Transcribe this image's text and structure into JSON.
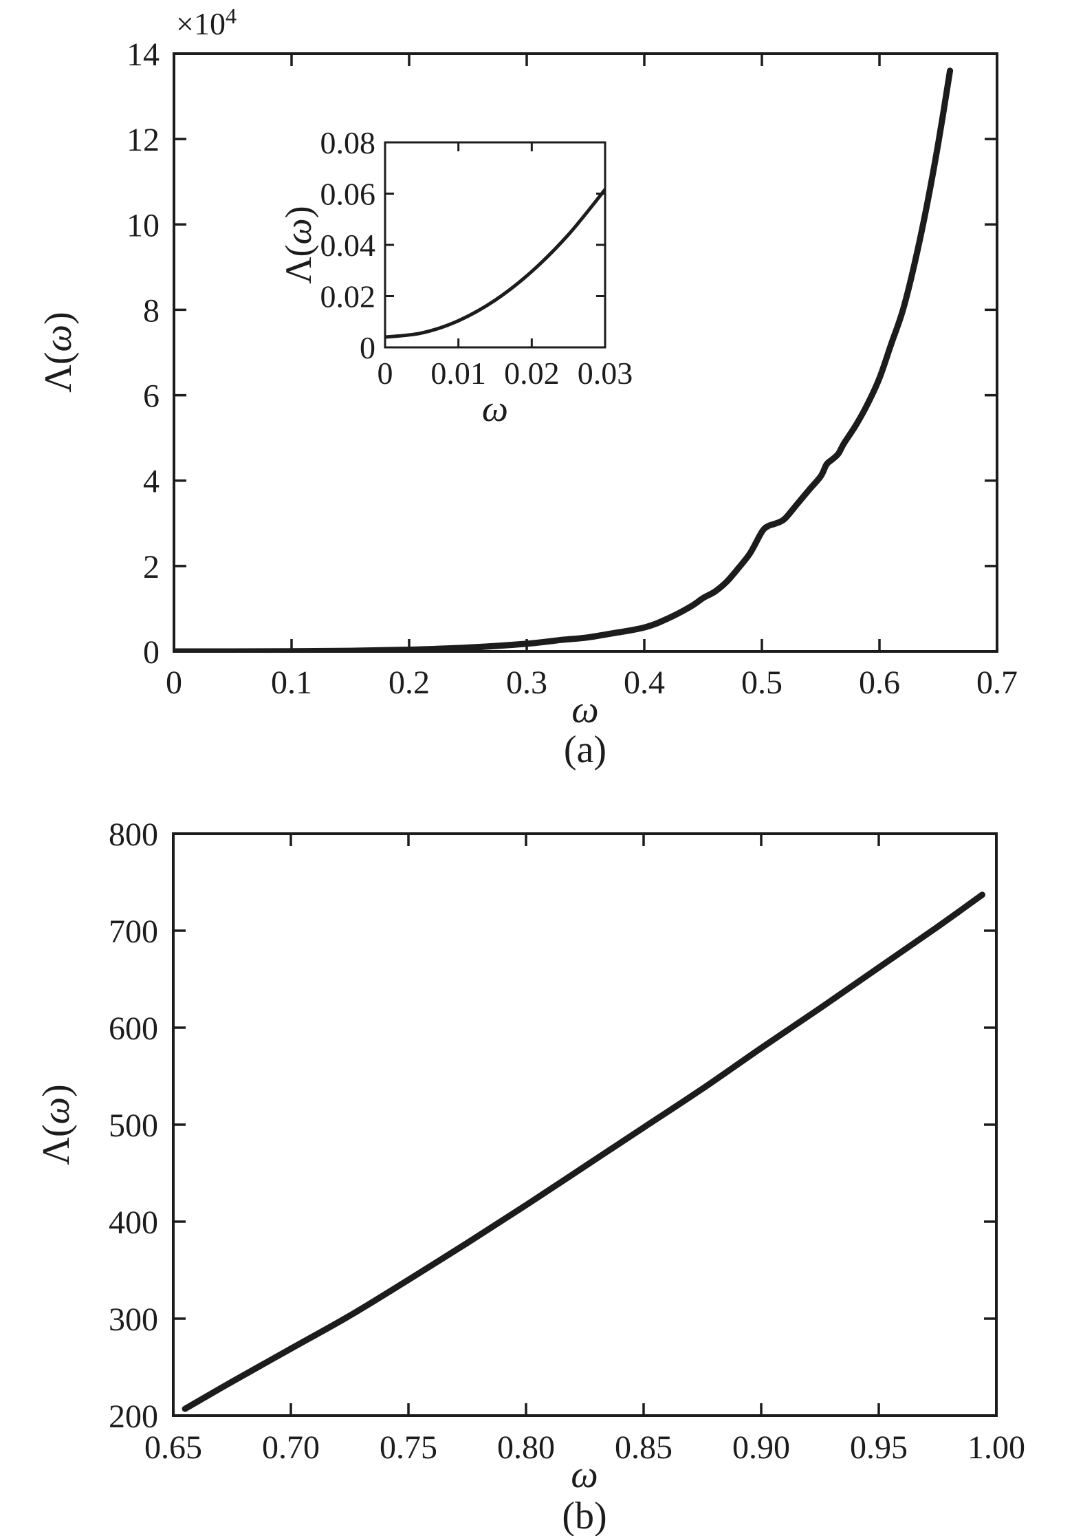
{
  "page": {
    "background": "#ffffff",
    "ink": "#1c1c1c"
  },
  "chart_data": [
    {
      "id": "panel-a",
      "type": "line",
      "title": "",
      "caption": "(a)",
      "xlabel": "ω",
      "ylabel": "Λ(ω)",
      "y_multiplier": {
        "base": "×10",
        "exponent": "4"
      },
      "xlim": [
        0,
        0.7
      ],
      "ylim": [
        0,
        140000
      ],
      "xticks": [
        0,
        0.1,
        0.2,
        0.3,
        0.4,
        0.5,
        0.6,
        0.7
      ],
      "xtick_labels": [
        "0",
        "0.1",
        "0.2",
        "0.3",
        "0.4",
        "0.5",
        "0.6",
        "0.7"
      ],
      "yticks": [
        0,
        20000,
        40000,
        60000,
        80000,
        100000,
        120000,
        140000
      ],
      "ytick_labels": [
        "0",
        "2",
        "4",
        "6",
        "8",
        "10",
        "12",
        "14"
      ],
      "grid": false,
      "box": true,
      "legend": null,
      "series": [
        {
          "name": "Λ(ω)",
          "points": [
            [
              0,
              0.004
            ],
            [
              0.05,
              5
            ],
            [
              0.1,
              40
            ],
            [
              0.15,
              150
            ],
            [
              0.2,
              400
            ],
            [
              0.25,
              900
            ],
            [
              0.3,
              1800
            ],
            [
              0.33,
              2700
            ],
            [
              0.35,
              3200
            ],
            [
              0.37,
              4100
            ],
            [
              0.4,
              5600
            ],
            [
              0.42,
              7700
            ],
            [
              0.44,
              10600
            ],
            [
              0.45,
              12500
            ],
            [
              0.46,
              14000
            ],
            [
              0.47,
              16300
            ],
            [
              0.48,
              19500
            ],
            [
              0.49,
              23000
            ],
            [
              0.5,
              28000
            ],
            [
              0.505,
              29300
            ],
            [
              0.51,
              29800
            ],
            [
              0.515,
              30300
            ],
            [
              0.52,
              31200
            ],
            [
              0.53,
              34500
            ],
            [
              0.54,
              37800
            ],
            [
              0.55,
              41000
            ],
            [
              0.555,
              43800
            ],
            [
              0.56,
              45000
            ],
            [
              0.565,
              46300
            ],
            [
              0.57,
              48800
            ],
            [
              0.58,
              53000
            ],
            [
              0.59,
              58000
            ],
            [
              0.6,
              64000
            ],
            [
              0.61,
              72000
            ],
            [
              0.62,
              80000
            ],
            [
              0.63,
              91000
            ],
            [
              0.64,
              104000
            ],
            [
              0.65,
              119000
            ],
            [
              0.66,
              136000
            ]
          ]
        }
      ]
    },
    {
      "id": "panel-a-inset",
      "type": "line",
      "title": "",
      "caption": "",
      "xlabel": "ω",
      "ylabel": "Λ(ω)",
      "y_multiplier": null,
      "xlim": [
        0,
        0.03
      ],
      "ylim": [
        0,
        0.08
      ],
      "xticks": [
        0,
        0.01,
        0.02,
        0.03
      ],
      "xtick_labels": [
        "0",
        "0.01",
        "0.02",
        "0.03"
      ],
      "yticks": [
        0,
        0.02,
        0.04,
        0.06,
        0.08
      ],
      "ytick_labels": [
        "0",
        "0.02",
        "0.04",
        "0.06",
        "0.08"
      ],
      "grid": false,
      "box": true,
      "legend": null,
      "series": [
        {
          "name": "Λ(ω)",
          "points": [
            [
              0,
              0.004
            ],
            [
              0.005,
              0.0056
            ],
            [
              0.01,
              0.0104
            ],
            [
              0.015,
              0.0184
            ],
            [
              0.02,
              0.0296
            ],
            [
              0.025,
              0.044
            ],
            [
              0.03,
              0.0616
            ]
          ]
        }
      ]
    },
    {
      "id": "panel-b",
      "type": "line",
      "title": "",
      "caption": "(b)",
      "xlabel": "ω",
      "ylabel": "Λ(ω)",
      "y_multiplier": null,
      "xlim": [
        0.65,
        1.0
      ],
      "ylim": [
        200,
        800
      ],
      "xticks": [
        0.65,
        0.7,
        0.75,
        0.8,
        0.85,
        0.9,
        0.95,
        1.0
      ],
      "xtick_labels": [
        "0.65",
        "0.70",
        "0.75",
        "0.80",
        "0.85",
        "0.90",
        "0.95",
        "1.00"
      ],
      "yticks": [
        200,
        300,
        400,
        500,
        600,
        700,
        800
      ],
      "ytick_labels": [
        "200",
        "300",
        "400",
        "500",
        "600",
        "700",
        "800"
      ],
      "grid": false,
      "box": true,
      "legend": null,
      "series": [
        {
          "name": "Λ(ω)",
          "points": [
            [
              0.655,
              207
            ],
            [
              0.675,
              235
            ],
            [
              0.7,
              269
            ],
            [
              0.725,
              303
            ],
            [
              0.75,
              340
            ],
            [
              0.775,
              378
            ],
            [
              0.8,
              417
            ],
            [
              0.825,
              457
            ],
            [
              0.85,
              497
            ],
            [
              0.875,
              537
            ],
            [
              0.9,
              579
            ],
            [
              0.925,
              620
            ],
            [
              0.95,
              662
            ],
            [
              0.975,
              704
            ],
            [
              0.994,
              737
            ]
          ]
        }
      ]
    }
  ]
}
